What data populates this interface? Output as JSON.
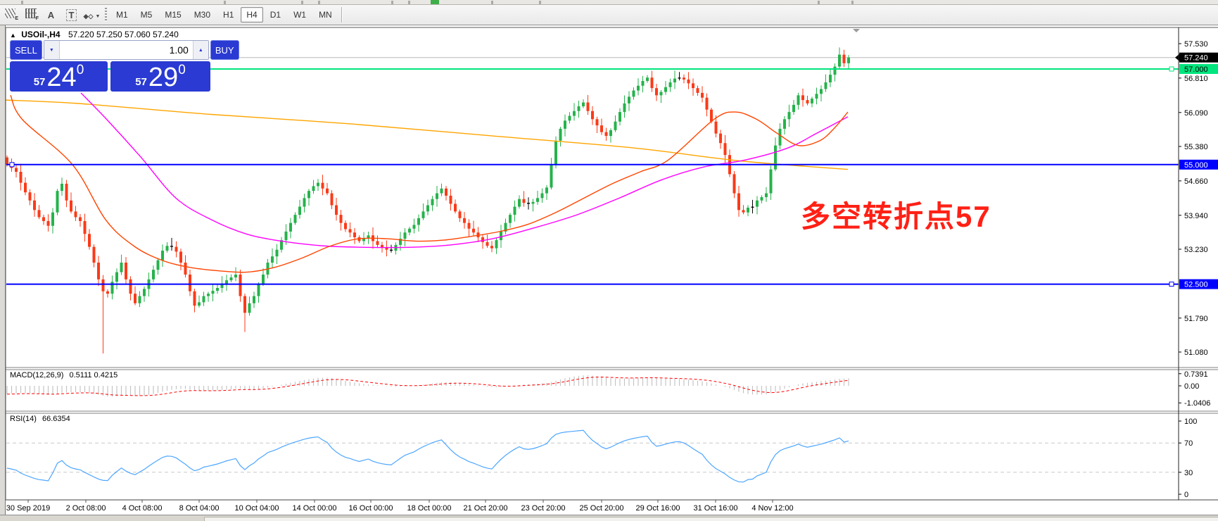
{
  "toolbar": {
    "icons": [
      {
        "name": "equidistant-channel-icon",
        "sub": "E"
      },
      {
        "name": "fibonacci-lines-icon",
        "sub": "F"
      },
      {
        "name": "text-label-icon",
        "glyph": "A"
      },
      {
        "name": "text-box-icon",
        "glyph": "T",
        "boxed": true
      },
      {
        "name": "arrow-symbols-icon",
        "glyph": "◆◇",
        "caret": "▼"
      }
    ],
    "timeframes": [
      "M1",
      "M5",
      "M15",
      "M30",
      "H1",
      "H4",
      "D1",
      "W1",
      "MN"
    ],
    "active_timeframe": "H4"
  },
  "chart": {
    "title_marker": "▲",
    "title_symbol": "USOil-,H4",
    "title_ohlc": "57.220 57.250 57.060 57.240"
  },
  "trade": {
    "sell_label": "SELL",
    "buy_label": "BUY",
    "volume": "1.00",
    "vol_down_glyph": "▼",
    "vol_up_glyph": "▲",
    "sell_price": {
      "prefix": "57",
      "main": "24",
      "sup": "0"
    },
    "buy_price": {
      "prefix": "57",
      "main": "29",
      "sup": "0"
    }
  },
  "annotation": {
    "text": "多空转折点57",
    "color": "#ff2015"
  },
  "indicators": {
    "macd": {
      "label": "MACD(12,26,9)",
      "values": "0.5111 0.4215",
      "axis_labels": [
        "0.7391",
        "0.00",
        "-1.0406"
      ],
      "histogram_color": "#c4c4c4",
      "signal_color": "#ff0000"
    },
    "rsi": {
      "label": "RSI(14)",
      "values": "66.6354",
      "axis_labels": [
        "100",
        "70",
        "30",
        "0"
      ],
      "levels": [
        70,
        30
      ],
      "line_color": "#4da6ff"
    }
  },
  "chart_data": {
    "type": "candlestick",
    "symbol": "USOil-",
    "timeframe": "H4",
    "ohlc_current": {
      "open": 57.22,
      "high": 57.25,
      "low": 57.06,
      "close": 57.24
    },
    "bull_color": "#26b24b",
    "bear_color": "#fb3a18",
    "doji_color": "#000000",
    "first_open": 55.15,
    "closes": [
      55.0,
      54.93,
      54.85,
      54.62,
      54.42,
      54.25,
      54.05,
      53.9,
      53.82,
      53.72,
      54.0,
      54.45,
      54.6,
      54.25,
      54.02,
      53.9,
      53.82,
      53.55,
      53.28,
      52.95,
      52.6,
      52.35,
      52.3,
      52.55,
      52.75,
      52.95,
      52.6,
      52.3,
      52.1,
      52.25,
      52.4,
      52.6,
      52.8,
      53.0,
      53.2,
      53.3,
      53.28,
      53.18,
      52.95,
      52.7,
      52.35,
      52.05,
      52.12,
      52.25,
      52.3,
      52.36,
      52.42,
      52.5,
      52.58,
      52.64,
      52.7,
      52.25,
      51.9,
      52.1,
      52.25,
      52.5,
      52.7,
      52.95,
      53.08,
      53.22,
      53.42,
      53.6,
      53.78,
      53.95,
      54.12,
      54.3,
      54.45,
      54.55,
      54.62,
      54.5,
      54.4,
      54.15,
      53.95,
      53.78,
      53.65,
      53.58,
      53.48,
      53.4,
      53.46,
      53.52,
      53.4,
      53.32,
      53.26,
      53.22,
      53.2,
      53.32,
      53.45,
      53.58,
      53.66,
      53.74,
      53.88,
      54.02,
      54.15,
      54.28,
      54.4,
      54.5,
      54.35,
      54.18,
      54.02,
      53.88,
      53.78,
      53.66,
      53.58,
      53.48,
      53.38,
      53.3,
      53.25,
      53.42,
      53.6,
      53.78,
      53.95,
      54.12,
      54.28,
      54.2,
      54.18,
      54.22,
      54.3,
      54.4,
      54.52,
      55.0,
      55.5,
      55.75,
      55.92,
      56.02,
      56.12,
      56.22,
      56.3,
      56.12,
      55.95,
      55.82,
      55.68,
      55.6,
      55.72,
      55.9,
      56.1,
      56.28,
      56.42,
      56.55,
      56.65,
      56.75,
      56.82,
      56.6,
      56.45,
      56.52,
      56.62,
      56.72,
      56.8,
      56.82,
      56.78,
      56.7,
      56.6,
      56.5,
      56.4,
      56.15,
      55.9,
      55.65,
      55.45,
      55.2,
      54.8,
      54.4,
      54.05,
      54.0,
      54.1,
      54.12,
      54.25,
      54.32,
      54.4,
      54.9,
      55.4,
      55.75,
      55.95,
      56.1,
      56.25,
      56.45,
      56.35,
      56.28,
      56.38,
      56.48,
      56.58,
      56.72,
      56.88,
      57.05,
      57.3,
      57.12,
      57.24
    ],
    "wick_overrides": {
      "21": {
        "low": 51.05
      },
      "52": {
        "low": 51.5
      },
      "182": {
        "high": 57.45
      }
    },
    "horizontal_lines": [
      {
        "price": 57.0,
        "label": "57.000",
        "color": "#00e57e",
        "label_text": "#000000",
        "anchor": "right"
      },
      {
        "price": 55.0,
        "label": "55.000",
        "color": "#0000ff",
        "label_text": "#ffffff",
        "anchor": "left"
      },
      {
        "price": 52.5,
        "label": "52.500",
        "color": "#0000ff",
        "label_text": "#ffffff",
        "anchor": "right"
      }
    ],
    "current_price": {
      "value": 57.24,
      "label": "57.240",
      "bg": "#000000",
      "text": "#ffffff",
      "line_color": "#b8b8b8"
    },
    "y_ticks": [
      "57.530",
      "56.810",
      "56.090",
      "55.380",
      "54.660",
      "53.940",
      "53.230",
      "51.790",
      "51.080"
    ],
    "x_ticks": [
      "30 Sep 2019",
      "2 Oct 08:00",
      "4 Oct 08:00",
      "8 Oct 04:00",
      "10 Oct 04:00",
      "14 Oct 00:00",
      "16 Oct 00:00",
      "18 Oct 00:00",
      "21 Oct 20:00",
      "23 Oct 20:00",
      "25 Oct 20:00",
      "29 Oct 16:00",
      "31 Oct 16:00",
      "4 Nov 12:00"
    ],
    "moving_averages": [
      {
        "name": "ma-slow",
        "color": "#ffa500",
        "points": [
          [
            8,
            56.35
          ],
          [
            110,
            56.28
          ],
          [
            300,
            56.05
          ],
          [
            500,
            55.85
          ],
          [
            700,
            55.6
          ],
          [
            900,
            55.35
          ],
          [
            1050,
            55.08
          ],
          [
            1205,
            54.9
          ]
        ]
      },
      {
        "name": "ma-medium",
        "color": "#ff00ff",
        "points": [
          [
            115,
            56.5
          ],
          [
            152,
            55.94
          ],
          [
            200,
            55.16
          ],
          [
            250,
            54.3
          ],
          [
            300,
            53.85
          ],
          [
            350,
            53.55
          ],
          [
            400,
            53.4
          ],
          [
            460,
            53.3
          ],
          [
            520,
            53.27
          ],
          [
            580,
            53.27
          ],
          [
            640,
            53.32
          ],
          [
            700,
            53.45
          ],
          [
            760,
            53.68
          ],
          [
            820,
            53.95
          ],
          [
            880,
            54.3
          ],
          [
            940,
            54.68
          ],
          [
            1000,
            54.95
          ],
          [
            1060,
            55.1
          ],
          [
            1120,
            55.35
          ],
          [
            1160,
            55.65
          ],
          [
            1205,
            56.0
          ]
        ]
      },
      {
        "name": "ma-fast",
        "color": "#ff4500",
        "points": [
          [
            15,
            56.45
          ],
          [
            32,
            55.94
          ],
          [
            103,
            55.0
          ],
          [
            150,
            53.85
          ],
          [
            190,
            53.3
          ],
          [
            230,
            53.0
          ],
          [
            270,
            52.85
          ],
          [
            310,
            52.78
          ],
          [
            350,
            52.75
          ],
          [
            390,
            52.85
          ],
          [
            430,
            53.05
          ],
          [
            470,
            53.3
          ],
          [
            510,
            53.45
          ],
          [
            550,
            53.45
          ],
          [
            590,
            53.4
          ],
          [
            630,
            53.42
          ],
          [
            670,
            53.5
          ],
          [
            710,
            53.6
          ],
          [
            750,
            53.75
          ],
          [
            790,
            54.0
          ],
          [
            830,
            54.3
          ],
          [
            870,
            54.6
          ],
          [
            910,
            54.85
          ],
          [
            950,
            55.1
          ],
          [
            1015,
            55.95
          ],
          [
            1045,
            56.1
          ],
          [
            1075,
            55.95
          ],
          [
            1105,
            55.65
          ],
          [
            1135,
            55.4
          ],
          [
            1165,
            55.5
          ],
          [
            1185,
            55.75
          ],
          [
            1205,
            56.1
          ]
        ]
      }
    ]
  }
}
